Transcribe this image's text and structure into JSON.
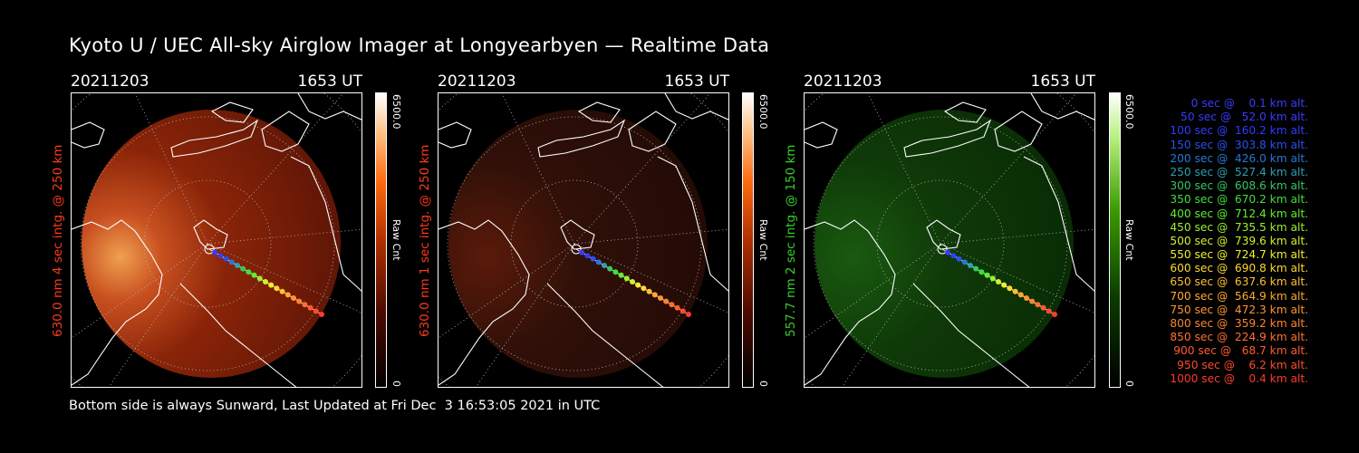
{
  "title": "Kyoto U / UEC All-sky Airglow Imager at Longyearbyen — Realtime Data",
  "panels": [
    {
      "date": "20211203",
      "time": "1653 UT",
      "ylabel": "630.0 nm  4 sec intg. @ 250 km",
      "label_color": "#ff3a1a",
      "cbar_max": "6500.0",
      "cbar_min": "0",
      "cbar_unit": "Raw Cnt",
      "tint": "red",
      "bright": 1.0
    },
    {
      "date": "20211203",
      "time": "1653 UT",
      "ylabel": "630.0 nm  1 sec intg. @ 250 km",
      "label_color": "#ff3a1a",
      "cbar_max": "6500.0",
      "cbar_min": "0",
      "cbar_unit": "Raw Cnt",
      "tint": "red",
      "bright": 0.35
    },
    {
      "date": "20211203",
      "time": "1653 UT",
      "ylabel": "557.7 nm  2 sec intg. @ 150 km",
      "label_color": "#36d12a",
      "cbar_max": "6500.0",
      "cbar_min": "0",
      "cbar_unit": "Raw Cnt",
      "tint": "green",
      "bright": 0.4
    }
  ],
  "legend": [
    {
      "text": "   0 sec @    0.1 km alt.",
      "color": "#3a3aff"
    },
    {
      "text": "  50 sec @   52.0 km alt.",
      "color": "#3a3aff"
    },
    {
      "text": " 100 sec @  160.2 km alt.",
      "color": "#2f3cff"
    },
    {
      "text": " 150 sec @  303.8 km alt.",
      "color": "#2a50f0"
    },
    {
      "text": " 200 sec @  426.0 km alt.",
      "color": "#2878d8"
    },
    {
      "text": " 250 sec @  527.4 km alt.",
      "color": "#2ea0b0"
    },
    {
      "text": " 300 sec @  608.6 km alt.",
      "color": "#35c860"
    },
    {
      "text": " 350 sec @  670.2 km alt.",
      "color": "#3ee03a"
    },
    {
      "text": " 400 sec @  712.4 km alt.",
      "color": "#60ee30"
    },
    {
      "text": " 450 sec @  735.5 km alt.",
      "color": "#9af030"
    },
    {
      "text": " 500 sec @  739.6 km alt.",
      "color": "#d0f030"
    },
    {
      "text": " 550 sec @  724.7 km alt.",
      "color": "#f2ee30"
    },
    {
      "text": " 600 sec @  690.8 km alt.",
      "color": "#ffd830"
    },
    {
      "text": " 650 sec @  637.6 km alt.",
      "color": "#ffc030"
    },
    {
      "text": " 700 sec @  564.9 km alt.",
      "color": "#ffa830"
    },
    {
      "text": " 750 sec @  472.3 km alt.",
      "color": "#ff9630"
    },
    {
      "text": " 800 sec @  359.2 km alt.",
      "color": "#ff8430"
    },
    {
      "text": " 850 sec @  224.9 km alt.",
      "color": "#ff7030"
    },
    {
      "text": " 900 sec @   68.7 km alt.",
      "color": "#ff5c30"
    },
    {
      "text": " 950 sec @    6.2 km alt.",
      "color": "#ff4a30"
    },
    {
      "text": "1000 sec @    0.4 km alt.",
      "color": "#ff3a30"
    }
  ],
  "footer": "Bottom side is always Sunward, Last Updated at Fri Dec  3 16:53:05 2021 in UTC"
}
